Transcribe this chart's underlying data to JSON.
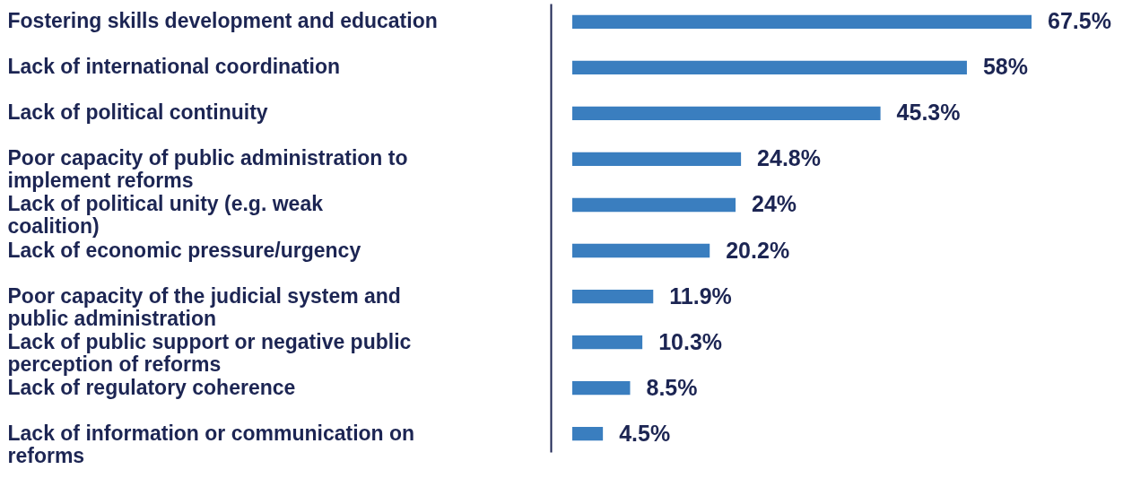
{
  "chart_data": {
    "type": "bar",
    "orientation": "horizontal",
    "color": "#3a7ebf",
    "categories": [
      "Fostering skills development and education",
      "Lack of international coordination",
      "Lack of political continuity",
      "Poor capacity of public administration to implement reforms",
      "Lack of political unity (e.g. weak coalition)",
      "Lack of economic pressure/urgency",
      "Poor capacity of the judicial system and public administration",
      "Lack of public support or negative public perception of reforms",
      "Lack of regulatory coherence",
      "Lack of information or communication on reforms"
    ],
    "values": [
      67.5,
      58,
      45.3,
      24.8,
      24,
      20.2,
      11.9,
      10.3,
      8.5,
      4.5
    ],
    "value_labels": [
      "67.5%",
      "58%",
      "45.3%",
      "24.8%",
      "24%",
      "20.2%",
      "11.9%",
      "10.3%",
      "8.5%",
      "4.5%"
    ],
    "grid": false
  }
}
